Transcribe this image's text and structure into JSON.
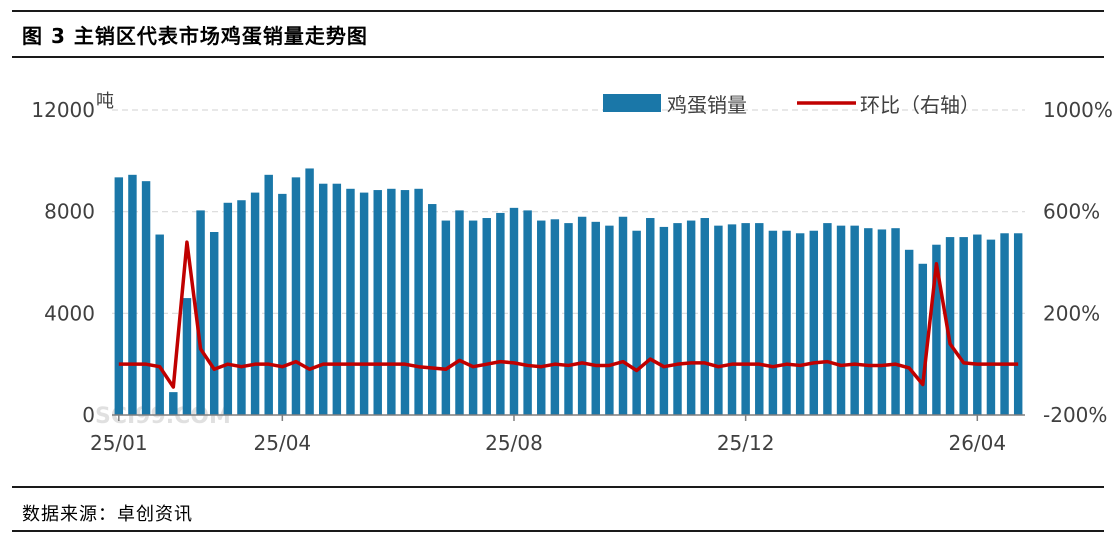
{
  "figure": {
    "title": "图 3  主销区代表市场鸡蛋销量走势图",
    "source": "数据来源：卓创资讯"
  },
  "watermark": "SCI99.COM",
  "colors": {
    "bar": "#1a77a8",
    "line": "#c00000",
    "grid": "#d9d9d9",
    "axis": "#7f7f7f"
  },
  "chart_data": {
    "type": "bar",
    "title": "",
    "xlabel": "",
    "ylabel": "吨",
    "y2label": "",
    "ylim": [
      0,
      12000
    ],
    "y2lim": [
      -200,
      1000
    ],
    "yticks": [
      0,
      4000,
      8000,
      12000
    ],
    "y2ticks": [
      "-200%",
      "200%",
      "600%",
      "1000%"
    ],
    "y2tickValues": [
      -200,
      200,
      600,
      1000
    ],
    "xticks": [
      {
        "label": "25/01",
        "index": 0
      },
      {
        "label": "25/04",
        "index": 12
      },
      {
        "label": "25/08",
        "index": 29
      },
      {
        "label": "25/12",
        "index": 46
      },
      {
        "label": "26/04",
        "index": 63
      }
    ],
    "grid": true,
    "legend": "top-right",
    "series": [
      {
        "name": "鸡蛋销量",
        "type": "bar",
        "axis": "left",
        "values": [
          9350,
          9450,
          9200,
          7100,
          900,
          4600,
          8050,
          7200,
          8350,
          8450,
          8750,
          9450,
          8700,
          9350,
          9700,
          9100,
          9100,
          8900,
          8750,
          8850,
          8900,
          8850,
          8900,
          8300,
          7650,
          8050,
          7650,
          7750,
          7950,
          8150,
          8050,
          7650,
          7700,
          7550,
          7800,
          7600,
          7450,
          7800,
          7250,
          7750,
          7400,
          7550,
          7650,
          7750,
          7450,
          7500,
          7550,
          7550,
          7250,
          7250,
          7150,
          7250,
          7550,
          7450,
          7450,
          7350,
          7300,
          7350,
          6500,
          5950,
          6700,
          7000,
          7000,
          7100,
          6900,
          7150,
          7150
        ]
      },
      {
        "name": "环比（右轴）",
        "type": "line",
        "axis": "right",
        "values": [
          0,
          0,
          0,
          -10,
          -90,
          480,
          60,
          -20,
          0,
          -10,
          0,
          0,
          -10,
          10,
          -20,
          0,
          0,
          0,
          0,
          0,
          0,
          0,
          -10,
          -15,
          -20,
          15,
          -10,
          0,
          10,
          5,
          -5,
          -10,
          0,
          -5,
          5,
          -5,
          -5,
          10,
          -25,
          20,
          -10,
          0,
          5,
          5,
          -10,
          0,
          0,
          0,
          -10,
          0,
          -5,
          5,
          10,
          -5,
          0,
          -5,
          -5,
          0,
          -15,
          -80,
          395,
          80,
          5,
          0,
          0,
          0,
          0
        ]
      }
    ]
  }
}
